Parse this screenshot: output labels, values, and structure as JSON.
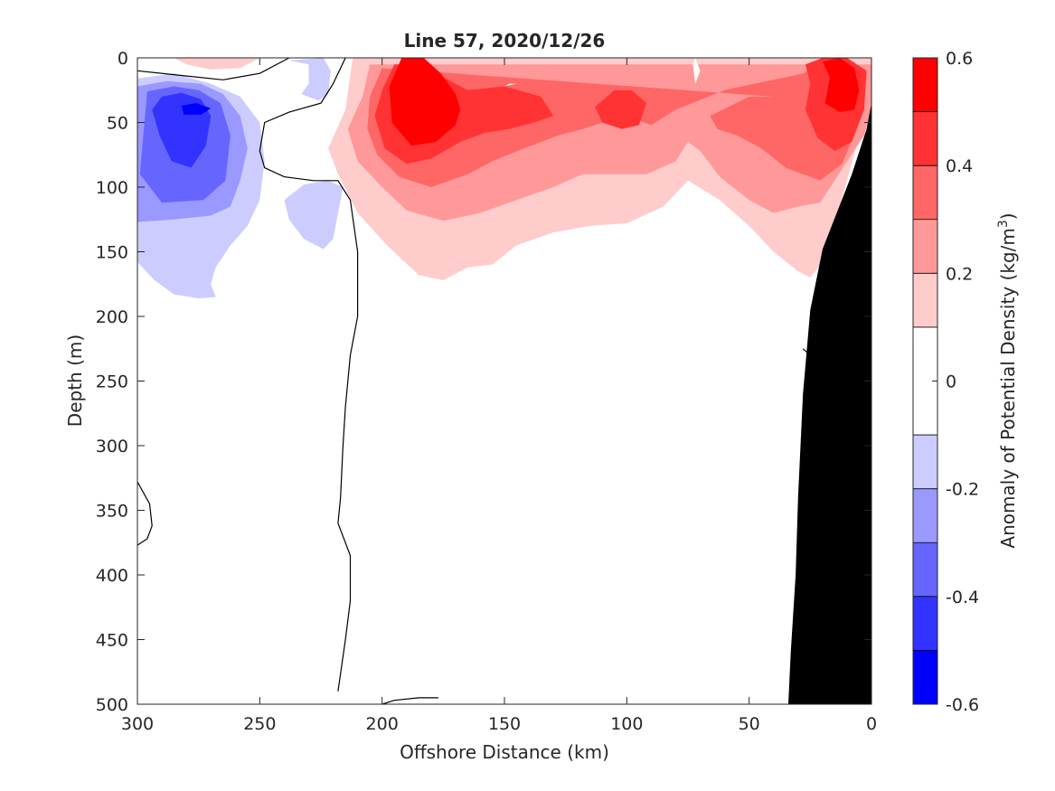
{
  "colors": {
    "bathymetry": "#000000",
    "contour_line": "#000000",
    "axis": "#262626",
    "neg_06": "#0000ff",
    "neg_05": "#3333ff",
    "neg_04": "#6666ff",
    "neg_03": "#9999ff",
    "neg_02": "#ccccff",
    "zero": "#ffffff",
    "pos_02": "#ffcccc",
    "pos_03": "#ff9999",
    "pos_04": "#ff6666",
    "pos_05": "#ff3333",
    "pos_06": "#ff0000"
  },
  "chart_data": {
    "type": "heatmap",
    "subtype": "filled-contour section",
    "title": "Line 57, 2020/12/26",
    "xlabel": "Offshore Distance (km)",
    "ylabel": "Depth (m)",
    "xlim": [
      300,
      0
    ],
    "ylim": [
      0,
      500
    ],
    "x_reversed": true,
    "y_reversed": true,
    "x_ticks": [
      300,
      250,
      200,
      150,
      100,
      50,
      0
    ],
    "y_ticks": [
      0,
      50,
      100,
      150,
      200,
      250,
      300,
      350,
      400,
      450,
      500
    ],
    "x_tick_labels": [
      "300",
      "250",
      "200",
      "150",
      "100",
      "50",
      "0"
    ],
    "y_tick_labels": [
      "0",
      "50",
      "100",
      "150",
      "200",
      "250",
      "300",
      "350",
      "400",
      "450",
      "500"
    ],
    "colorbar": {
      "label_text": "Anomaly of Potential Density (kg/m",
      "label_superscript": "3",
      "label_close": ")",
      "range": [
        -0.6,
        0.6
      ],
      "levels": [
        -0.6,
        -0.5,
        -0.4,
        -0.3,
        -0.2,
        -0.1,
        0.1,
        0.2,
        0.3,
        0.4,
        0.5,
        0.6
      ],
      "tick_values": [
        0.6,
        0.4,
        0.2,
        0,
        -0.2,
        -0.4,
        -0.6
      ],
      "tick_labels": [
        "0.6",
        "0.4",
        "0.2",
        "0",
        "-0.2",
        "-0.4",
        "-0.6"
      ]
    },
    "regions": [
      {
        "name": "negative-anomaly-west",
        "level": -0.2,
        "color_key": "neg_02",
        "points": [
          [
            300,
            16
          ],
          [
            285,
            12
          ],
          [
            270,
            20
          ],
          [
            258,
            30
          ],
          [
            250,
            50
          ],
          [
            248,
            80
          ],
          [
            250,
            110
          ],
          [
            255,
            130
          ],
          [
            262,
            145
          ],
          [
            268,
            162
          ],
          [
            270,
            175
          ],
          [
            268,
            185
          ],
          [
            275,
            186
          ],
          [
            285,
            183
          ],
          [
            293,
            172
          ],
          [
            300,
            158
          ]
        ]
      },
      {
        "name": "negative-anomaly-west",
        "level": -0.3,
        "color_key": "neg_03",
        "points": [
          [
            300,
            22
          ],
          [
            288,
            18
          ],
          [
            274,
            20
          ],
          [
            265,
            28
          ],
          [
            258,
            45
          ],
          [
            255,
            70
          ],
          [
            258,
            95
          ],
          [
            262,
            115
          ],
          [
            270,
            122
          ],
          [
            285,
            125
          ],
          [
            300,
            127
          ]
        ]
      },
      {
        "name": "negative-anomaly-west",
        "level": -0.4,
        "color_key": "neg_04",
        "points": [
          [
            296,
            26
          ],
          [
            285,
            22
          ],
          [
            275,
            25
          ],
          [
            266,
            35
          ],
          [
            262,
            60
          ],
          [
            264,
            95
          ],
          [
            273,
            110
          ],
          [
            290,
            112
          ],
          [
            299,
            90
          ]
        ]
      },
      {
        "name": "negative-anomaly-west",
        "level": -0.5,
        "color_key": "neg_05",
        "points": [
          [
            290,
            30
          ],
          [
            282,
            27
          ],
          [
            274,
            32
          ],
          [
            270,
            45
          ],
          [
            272,
            68
          ],
          [
            278,
            85
          ],
          [
            286,
            80
          ],
          [
            291,
            60
          ],
          [
            294,
            40
          ]
        ]
      },
      {
        "name": "negative-anomaly-west",
        "level": -0.6,
        "color_key": "neg_06",
        "points": [
          [
            282,
            37
          ],
          [
            276,
            35
          ],
          [
            270,
            39
          ],
          [
            274,
            44
          ],
          [
            281,
            44
          ]
        ]
      },
      {
        "name": "negative-anomaly-mid",
        "level": -0.2,
        "color_key": "neg_02",
        "points": [
          [
            238,
            2
          ],
          [
            230,
            5
          ],
          [
            230,
            20
          ],
          [
            233,
            28
          ],
          [
            226,
            33
          ],
          [
            222,
            28
          ],
          [
            221,
            10
          ],
          [
            224,
            0
          ]
        ]
      },
      {
        "name": "negative-anomaly-mid",
        "level": -0.2,
        "color_key": "neg_02",
        "points": [
          [
            240,
            110
          ],
          [
            232,
            98
          ],
          [
            222,
            95
          ],
          [
            216,
            100
          ],
          [
            218,
            120
          ],
          [
            220,
            140
          ],
          [
            224,
            148
          ],
          [
            232,
            140
          ],
          [
            238,
            125
          ]
        ]
      },
      {
        "name": "positive-anomaly-surface-west",
        "level": 0.2,
        "color_key": "pos_02",
        "points": [
          [
            285,
            0
          ],
          [
            280,
            5
          ],
          [
            270,
            9
          ],
          [
            258,
            8
          ],
          [
            250,
            0
          ]
        ]
      },
      {
        "name": "positive-anomaly-main",
        "level": 0.2,
        "color_key": "pos_02",
        "points": [
          [
            212,
            0
          ],
          [
            215,
            40
          ],
          [
            222,
            70
          ],
          [
            218,
            90
          ],
          [
            210,
            120
          ],
          [
            198,
            145
          ],
          [
            185,
            168
          ],
          [
            175,
            172
          ],
          [
            165,
            162
          ],
          [
            155,
            160
          ],
          [
            145,
            145
          ],
          [
            130,
            135
          ],
          [
            115,
            130
          ],
          [
            100,
            128
          ],
          [
            85,
            115
          ],
          [
            75,
            95
          ],
          [
            62,
            110
          ],
          [
            50,
            130
          ],
          [
            40,
            150
          ],
          [
            30,
            165
          ],
          [
            25,
            170
          ],
          [
            19,
            155
          ],
          [
            0,
            28
          ],
          [
            0,
            0
          ]
        ]
      },
      {
        "name": "positive-anomaly-main",
        "level": 0.3,
        "color_key": "pos_03",
        "points": [
          [
            205,
            5
          ],
          [
            208,
            30
          ],
          [
            214,
            55
          ],
          [
            210,
            80
          ],
          [
            200,
            100
          ],
          [
            190,
            118
          ],
          [
            175,
            126
          ],
          [
            160,
            120
          ],
          [
            145,
            110
          ],
          [
            130,
            100
          ],
          [
            118,
            90
          ],
          [
            105,
            90
          ],
          [
            92,
            90
          ],
          [
            80,
            80
          ],
          [
            75,
            65
          ],
          [
            70,
            72
          ],
          [
            62,
            92
          ],
          [
            50,
            110
          ],
          [
            40,
            120
          ],
          [
            30,
            115
          ],
          [
            21,
            112
          ],
          [
            3,
            60
          ],
          [
            0,
            40
          ],
          [
            0,
            5
          ]
        ]
      },
      {
        "name": "positive-anomaly-main",
        "level": 0.4,
        "color_key": "pos_04",
        "points": [
          [
            200,
            8
          ],
          [
            205,
            30
          ],
          [
            206,
            55
          ],
          [
            202,
            75
          ],
          [
            193,
            92
          ],
          [
            180,
            100
          ],
          [
            165,
            90
          ],
          [
            155,
            80
          ],
          [
            142,
            70
          ],
          [
            128,
            60
          ],
          [
            118,
            55
          ],
          [
            110,
            50
          ],
          [
            100,
            45
          ],
          [
            90,
            52
          ],
          [
            80,
            40
          ],
          [
            60,
            25
          ],
          [
            48,
            20
          ],
          [
            35,
            15
          ],
          [
            28,
            12
          ],
          [
            25,
            9
          ],
          [
            10,
            25
          ],
          [
            5,
            50
          ],
          [
            12,
            82
          ],
          [
            21,
            95
          ],
          [
            35,
            85
          ],
          [
            45,
            70
          ],
          [
            55,
            60
          ],
          [
            63,
            55
          ],
          [
            66,
            45
          ],
          [
            50,
            30
          ],
          [
            40,
            30
          ]
        ]
      },
      {
        "name": "positive-anomaly-main",
        "level": 0.5,
        "color_key": "pos_05",
        "points": [
          [
            195,
            5
          ],
          [
            200,
            25
          ],
          [
            203,
            45
          ],
          [
            199,
            70
          ],
          [
            190,
            82
          ],
          [
            180,
            78
          ],
          [
            168,
            65
          ],
          [
            158,
            58
          ],
          [
            148,
            55
          ],
          [
            138,
            50
          ],
          [
            130,
            45
          ],
          [
            135,
            30
          ],
          [
            150,
            22
          ],
          [
            165,
            25
          ],
          [
            175,
            15
          ],
          [
            182,
            5
          ]
        ]
      },
      {
        "name": "positive-anomaly-main",
        "level": 0.5,
        "color_key": "pos_05",
        "points": [
          [
            105,
            25
          ],
          [
            98,
            25
          ],
          [
            92,
            35
          ],
          [
            95,
            52
          ],
          [
            102,
            55
          ],
          [
            110,
            50
          ],
          [
            113,
            38
          ]
        ]
      },
      {
        "name": "positive-anomaly-main",
        "level": 0.5,
        "color_key": "pos_05",
        "points": [
          [
            27,
            5
          ],
          [
            25,
            20
          ],
          [
            27,
            40
          ],
          [
            22,
            62
          ],
          [
            15,
            72
          ],
          [
            8,
            65
          ],
          [
            3,
            40
          ],
          [
            2,
            10
          ],
          [
            10,
            0
          ],
          [
            20,
            0
          ]
        ]
      },
      {
        "name": "positive-anomaly-main",
        "level": 0.6,
        "color_key": "pos_06",
        "points": [
          [
            192,
            0
          ],
          [
            197,
            22
          ],
          [
            196,
            50
          ],
          [
            188,
            68
          ],
          [
            178,
            65
          ],
          [
            170,
            52
          ],
          [
            168,
            40
          ],
          [
            170,
            28
          ],
          [
            176,
            12
          ],
          [
            183,
            0
          ]
        ]
      },
      {
        "name": "positive-anomaly-main",
        "level": 0.6,
        "color_key": "pos_06",
        "points": [
          [
            20,
            3
          ],
          [
            17,
            15
          ],
          [
            19,
            35
          ],
          [
            13,
            42
          ],
          [
            7,
            40
          ],
          [
            5,
            25
          ],
          [
            7,
            8
          ],
          [
            13,
            0
          ]
        ]
      },
      {
        "name": "zero-gap",
        "level": 0,
        "color_key": "zero",
        "points": [
          [
            72,
            0
          ],
          [
            70,
            10
          ],
          [
            72,
            20
          ],
          [
            73,
            5
          ]
        ]
      },
      {
        "name": "zero-gap",
        "level": 0,
        "color_key": "zero",
        "points": [
          [
            145,
            20
          ],
          [
            150,
            22
          ],
          [
            148,
            20
          ]
        ]
      }
    ],
    "contour_lines": [
      {
        "name": "zero-contour",
        "points": [
          [
            300,
            10
          ],
          [
            285,
            13
          ],
          [
            265,
            17
          ],
          [
            250,
            12
          ],
          [
            240,
            2
          ],
          [
            238,
            0
          ]
        ]
      },
      {
        "name": "zero-contour",
        "points": [
          [
            215,
            0
          ],
          [
            220,
            20
          ],
          [
            225,
            35
          ],
          [
            238,
            42
          ],
          [
            248,
            50
          ],
          [
            250,
            72
          ],
          [
            248,
            85
          ],
          [
            240,
            92
          ],
          [
            228,
            95
          ],
          [
            218,
            95
          ],
          [
            213,
            110
          ],
          [
            210,
            150
          ],
          [
            210,
            200
          ],
          [
            213,
            230
          ],
          [
            215,
            270
          ],
          [
            216,
            300
          ],
          [
            217,
            340
          ],
          [
            218,
            360
          ],
          [
            213,
            385
          ],
          [
            213,
            420
          ],
          [
            215,
            450
          ],
          [
            218,
            490
          ]
        ]
      },
      {
        "name": "zero-contour-deep",
        "points": [
          [
            300,
            328
          ],
          [
            295,
            345
          ],
          [
            294,
            362
          ],
          [
            296,
            372
          ],
          [
            300,
            377
          ]
        ]
      },
      {
        "name": "zero-contour-bottom",
        "points": [
          [
            200,
            500
          ],
          [
            195,
            497
          ],
          [
            185,
            495
          ],
          [
            177,
            495
          ]
        ]
      },
      {
        "name": "zero-contour-slope",
        "points": [
          [
            28,
            225
          ],
          [
            25,
            230
          ],
          [
            27,
            260
          ],
          [
            25,
            272
          ],
          [
            22,
            285
          ]
        ]
      }
    ],
    "bathymetry": {
      "name": "continental-shelf",
      "points": [
        [
          0,
          35
        ],
        [
          2,
          55
        ],
        [
          8,
          90
        ],
        [
          20,
          148
        ],
        [
          25,
          195
        ],
        [
          28,
          260
        ],
        [
          30,
          340
        ],
        [
          31,
          400
        ],
        [
          33,
          460
        ],
        [
          34,
          500
        ],
        [
          0,
          500
        ]
      ]
    }
  }
}
